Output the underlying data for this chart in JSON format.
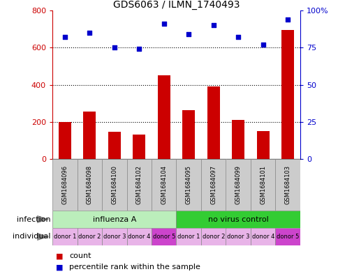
{
  "title": "GDS6063 / ILMN_1740493",
  "samples": [
    "GSM1684096",
    "GSM1684098",
    "GSM1684100",
    "GSM1684102",
    "GSM1684104",
    "GSM1684095",
    "GSM1684097",
    "GSM1684099",
    "GSM1684101",
    "GSM1684103"
  ],
  "counts": [
    200,
    257,
    145,
    132,
    450,
    262,
    390,
    210,
    150,
    693
  ],
  "percentiles": [
    82,
    85,
    75,
    74,
    91,
    84,
    90,
    82,
    77,
    94
  ],
  "ylim_left": [
    0,
    800
  ],
  "ylim_right": [
    0,
    100
  ],
  "yticks_left": [
    0,
    200,
    400,
    600,
    800
  ],
  "yticks_right": [
    0,
    25,
    50,
    75,
    100
  ],
  "yticklabels_right": [
    "0",
    "25",
    "50",
    "75",
    "100%"
  ],
  "bar_color": "#cc0000",
  "dot_color": "#0000cc",
  "infection_groups": [
    {
      "label": "influenza A",
      "start": 0,
      "end": 5,
      "color": "#bbeebb"
    },
    {
      "label": "no virus control",
      "start": 5,
      "end": 10,
      "color": "#33cc33"
    }
  ],
  "individual_labels": [
    "donor 1",
    "donor 2",
    "donor 3",
    "donor 4",
    "donor 5",
    "donor 1",
    "donor 2",
    "donor 3",
    "donor 4",
    "donor 5"
  ],
  "individual_colors": [
    "#e8b4e8",
    "#e8b4e8",
    "#e8b4e8",
    "#e8b4e8",
    "#cc44cc",
    "#e8b4e8",
    "#e8b4e8",
    "#e8b4e8",
    "#e8b4e8",
    "#cc44cc"
  ],
  "infection_label": "infection",
  "individual_label": "individual",
  "legend_count_label": "count",
  "legend_percentile_label": "percentile rank within the sample",
  "sample_box_color": "#cccccc",
  "bar_width": 0.5,
  "dot_size": 25
}
